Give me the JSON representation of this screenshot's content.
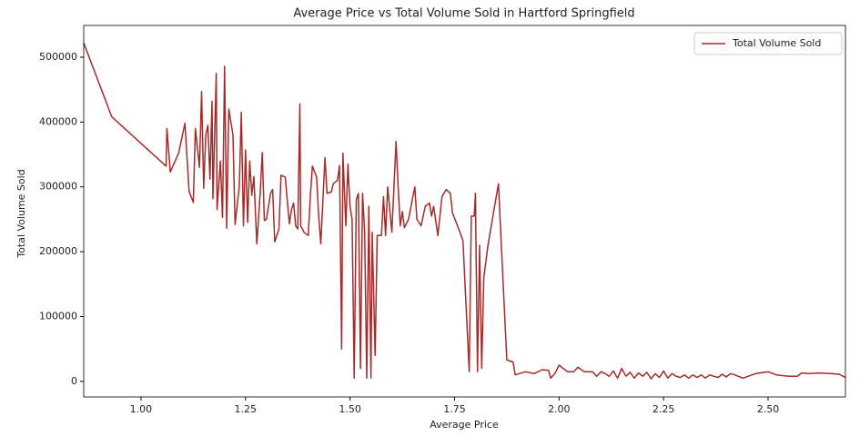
{
  "chart_data": {
    "type": "line",
    "title": "Average Price vs Total Volume Sold in Hartford Springfield",
    "x_label": "Average Price",
    "y_label": "Total Volume Sold",
    "legend": "upper right",
    "grid": false,
    "xlim": [
      0.863,
      2.685
    ],
    "ylim": [
      -24000,
      549000
    ],
    "xticks": [
      {
        "value": 1,
        "label": "1.00"
      },
      {
        "value": 1.25,
        "label": "1.25"
      },
      {
        "value": 1.5,
        "label": "1.50"
      },
      {
        "value": 1.75,
        "label": "1.75"
      },
      {
        "value": 2,
        "label": "2.00"
      },
      {
        "value": 2.25,
        "label": "2.25"
      },
      {
        "value": 2.5,
        "label": "2.50"
      }
    ],
    "yticks": [
      0,
      100000,
      200000,
      300000,
      400000,
      500000
    ],
    "x": [
      0.863,
      0.93,
      1.06,
      1.062,
      1.07,
      1.09,
      1.105,
      1.115,
      1.125,
      1.13,
      1.14,
      1.145,
      1.15,
      1.155,
      1.16,
      1.165,
      1.17,
      1.172,
      1.18,
      1.182,
      1.19,
      1.195,
      1.2,
      1.205,
      1.21,
      1.22,
      1.225,
      1.235,
      1.24,
      1.245,
      1.25,
      1.255,
      1.26,
      1.265,
      1.27,
      1.277,
      1.285,
      1.29,
      1.295,
      1.3,
      1.31,
      1.315,
      1.32,
      1.33,
      1.335,
      1.345,
      1.355,
      1.36,
      1.365,
      1.37,
      1.375,
      1.38,
      1.382,
      1.39,
      1.4,
      1.405,
      1.41,
      1.42,
      1.425,
      1.43,
      1.44,
      1.445,
      1.455,
      1.46,
      1.47,
      1.475,
      1.48,
      1.483,
      1.49,
      1.495,
      1.5,
      1.505,
      1.51,
      1.515,
      1.52,
      1.525,
      1.53,
      1.535,
      1.54,
      1.545,
      1.55,
      1.553,
      1.56,
      1.565,
      1.575,
      1.58,
      1.585,
      1.59,
      1.6,
      1.61,
      1.615,
      1.62,
      1.625,
      1.63,
      1.64,
      1.655,
      1.66,
      1.67,
      1.68,
      1.69,
      1.695,
      1.7,
      1.71,
      1.72,
      1.73,
      1.74,
      1.745,
      1.76,
      1.77,
      1.785,
      1.79,
      1.797,
      1.8,
      1.805,
      1.81,
      1.815,
      1.82,
      1.83,
      1.855,
      1.875,
      1.89,
      1.895,
      1.92,
      1.94,
      1.96,
      1.975,
      1.98,
      1.99,
      2.0,
      2.02,
      2.035,
      2.045,
      2.06,
      2.08,
      2.09,
      2.1,
      2.11,
      2.12,
      2.13,
      2.14,
      2.15,
      2.16,
      2.17,
      2.18,
      2.19,
      2.2,
      2.21,
      2.22,
      2.23,
      2.24,
      2.25,
      2.26,
      2.27,
      2.28,
      2.29,
      2.3,
      2.31,
      2.32,
      2.33,
      2.34,
      2.35,
      2.36,
      2.37,
      2.38,
      2.39,
      2.4,
      2.41,
      2.42,
      2.44,
      2.47,
      2.5,
      2.52,
      2.55,
      2.57,
      2.58,
      2.6,
      2.62,
      2.65,
      2.67,
      2.685
    ],
    "series": [
      {
        "name": "Total Volume Sold",
        "color": "#a52a2a",
        "values": [
          522000,
          408000,
          332000,
          390000,
          323000,
          352000,
          398000,
          293000,
          276000,
          390000,
          330000,
          447000,
          298000,
          380000,
          395000,
          312000,
          432000,
          282000,
          475000,
          265000,
          340000,
          253000,
          486000,
          236000,
          420000,
          380000,
          242000,
          300000,
          415000,
          240000,
          357000,
          245000,
          340000,
          287000,
          316000,
          212000,
          290000,
          353000,
          248000,
          250000,
          290000,
          296000,
          215000,
          235000,
          318000,
          315000,
          243000,
          265000,
          275000,
          240000,
          235000,
          428000,
          240000,
          230000,
          225000,
          285000,
          332000,
          315000,
          255000,
          212000,
          345000,
          290000,
          292000,
          305000,
          310000,
          333000,
          50000,
          352000,
          240000,
          335000,
          270000,
          250000,
          5000,
          280000,
          290000,
          20000,
          290000,
          230000,
          5000,
          270000,
          5000,
          230000,
          40000,
          225000,
          225000,
          285000,
          225000,
          300000,
          230000,
          370000,
          300000,
          240000,
          262000,
          237000,
          250000,
          300000,
          250000,
          240000,
          270000,
          275000,
          255000,
          270000,
          225000,
          285000,
          296000,
          290000,
          260000,
          235000,
          217000,
          15000,
          255000,
          255000,
          290000,
          15000,
          210000,
          20000,
          160000,
          210000,
          305000,
          33000,
          30000,
          10000,
          15000,
          12000,
          18000,
          17000,
          5000,
          12000,
          25000,
          15000,
          15000,
          22000,
          15000,
          15000,
          8000,
          15000,
          12000,
          8000,
          16000,
          5000,
          20000,
          8000,
          14000,
          5000,
          13000,
          8000,
          14000,
          4000,
          12000,
          6000,
          16000,
          5000,
          12000,
          8000,
          6000,
          10000,
          5000,
          10000,
          6000,
          10000,
          5000,
          10000,
          8000,
          6000,
          11000,
          7000,
          12000,
          10000,
          5000,
          12000,
          15000,
          10000,
          8000,
          8000,
          13000,
          12000,
          13000,
          12000,
          11000,
          6000
        ]
      }
    ]
  }
}
